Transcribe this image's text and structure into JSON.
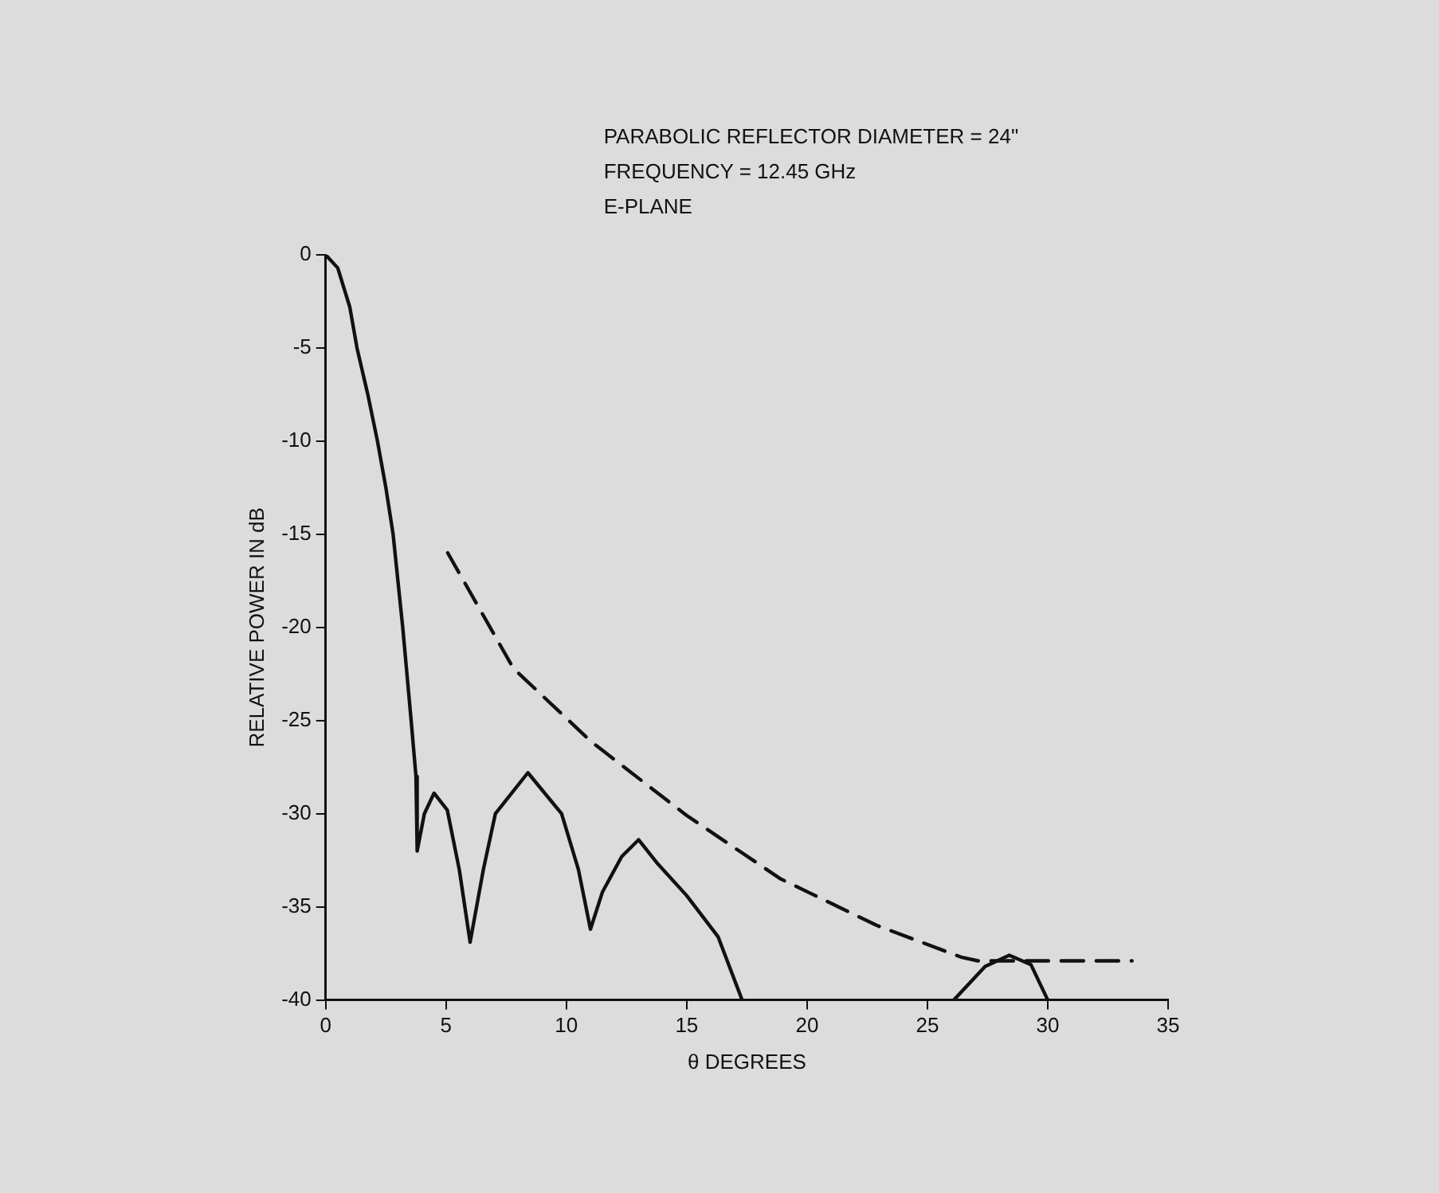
{
  "chart_data": {
    "type": "line",
    "xlabel": "θ DEGREES",
    "ylabel": "RELATIVE POWER IN dB",
    "annotations": [
      "PARABOLIC REFLECTOR DIAMETER = 24\"",
      "FREQUENCY = 12.45 GHz",
      "E-PLANE"
    ],
    "xlim": [
      0,
      35
    ],
    "xticks": [
      0,
      5,
      10,
      15,
      20,
      25,
      30,
      35
    ],
    "ylim": [
      -40,
      0
    ],
    "yticks": [
      0,
      -5,
      -10,
      -15,
      -20,
      -25,
      -30,
      -35,
      -40
    ],
    "grid": false,
    "legend": false,
    "marker": "none",
    "series": [
      {
        "color": "#111111",
        "line_style": "solid",
        "x": [
          0,
          0.5,
          1,
          1.3,
          1.75,
          2.15,
          2.5,
          2.8,
          3.2,
          3.55,
          3.75,
          3.8,
          4.1,
          4.5,
          5.05,
          5.55,
          6.0,
          6.55,
          7.05,
          8.4,
          9.8,
          10.5,
          11.0,
          11.5,
          12.3,
          13.0,
          13.8,
          15.0,
          16.3,
          17.3,
          null,
          26.1,
          27.4,
          28.4,
          29.3,
          30.0
        ],
        "values": [
          0,
          -0.7,
          -2.8,
          -5,
          -7.5,
          -10,
          -12.5,
          -15,
          -20,
          -25,
          -28,
          -32,
          -30,
          -28.9,
          -29.8,
          -33,
          -36.9,
          -33,
          -30,
          -27.8,
          -30,
          -33,
          -36.2,
          -34.2,
          -32.3,
          -31.4,
          -32.7,
          -34.4,
          -36.6,
          -40,
          null,
          -40,
          -38.2,
          -37.6,
          -38.1,
          -40
        ]
      },
      {
        "color": "#111111",
        "line_style": "dashed",
        "x": [
          5.07,
          7.8,
          11.0,
          15.0,
          18.9,
          22.9,
          26.4,
          27.1,
          33.5
        ],
        "values": [
          -16,
          -22.2,
          -26.1,
          -30.1,
          -33.5,
          -36.0,
          -37.7,
          -37.9,
          -37.9
        ]
      }
    ]
  }
}
